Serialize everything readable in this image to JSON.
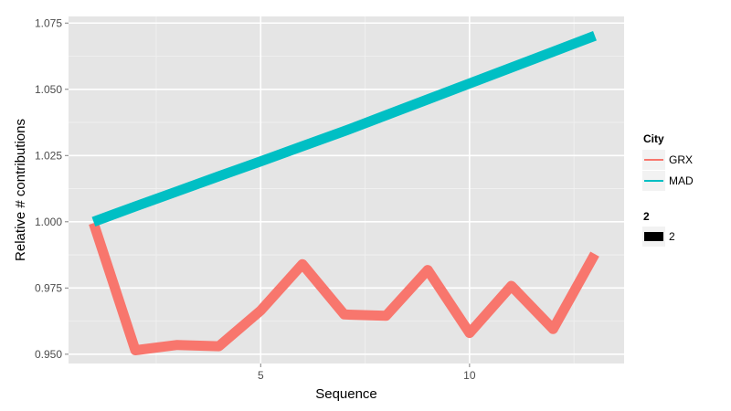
{
  "chart_data": {
    "type": "line",
    "xlabel": "Sequence",
    "ylabel": "Relative # contributions",
    "xlim": [
      0.4,
      13.7
    ],
    "ylim": [
      0.9465,
      1.0775
    ],
    "x_ticks": [
      5,
      10
    ],
    "y_ticks": [
      0.95,
      0.975,
      1.0,
      1.025,
      1.05,
      1.075
    ],
    "y_tick_labels": [
      "0.950",
      "0.975",
      "1.000",
      "1.025",
      "1.050",
      "1.075"
    ],
    "x_tick_labels": [
      "5",
      "10"
    ],
    "grid": true,
    "legend_position": "right",
    "series": [
      {
        "name": "GRX",
        "color": "#F8766D",
        "x": [
          1,
          2,
          3,
          4,
          5,
          6,
          7,
          8,
          9,
          10,
          11,
          12,
          13
        ],
        "values": [
          0.9995,
          0.9515,
          0.9535,
          0.953,
          0.9665,
          0.984,
          0.965,
          0.9645,
          0.9818,
          0.958,
          0.9758,
          0.9595,
          0.9878
        ]
      },
      {
        "name": "MAD",
        "color": "#00BFC4",
        "x": [
          1,
          2,
          3,
          4,
          5,
          6,
          7,
          8,
          9,
          10,
          11,
          12,
          13
        ],
        "values": [
          1.0,
          1.0058,
          1.0115,
          1.0172,
          1.0228,
          1.0285,
          1.0342,
          1.0402,
          1.0462,
          1.0522,
          1.0582,
          1.0642,
          1.0702
        ]
      }
    ],
    "legend": {
      "color_title": "City",
      "color_entries": [
        "GRX",
        "MAD"
      ],
      "size_title": "2",
      "size_entries": [
        "2"
      ]
    }
  }
}
